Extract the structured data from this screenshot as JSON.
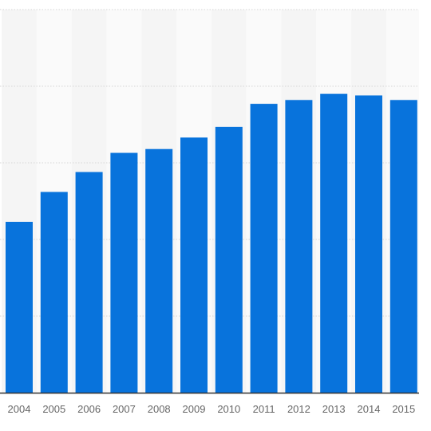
{
  "chart_data": {
    "type": "bar",
    "categories": [
      "2004",
      "2005",
      "2006",
      "2007",
      "2008",
      "2009",
      "2010",
      "2011",
      "2012",
      "2013",
      "2014",
      "2015"
    ],
    "values": [
      22.3,
      26.2,
      28.8,
      31.3,
      31.8,
      33.3,
      34.7,
      37.7,
      38.2,
      39.0,
      38.8,
      38.2
    ],
    "ylim": [
      0,
      50
    ],
    "grid": true,
    "colors": {
      "bar": "#0873dc",
      "band_dark": "#f5f5f5",
      "band_light": "#fafafa",
      "grid": "#d6d6d6",
      "axis": "#333333",
      "tick_text": "#666666"
    }
  }
}
